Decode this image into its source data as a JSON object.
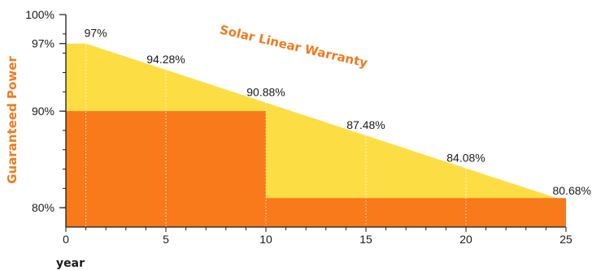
{
  "chart_data": {
    "type": "area",
    "title": "",
    "xlabel": "year",
    "ylabel": "Guaranteed Power",
    "annotation": "Solar Linear Warranty",
    "xlim": [
      0,
      25
    ],
    "ylim": [
      78,
      100
    ],
    "x_ticks": [
      "0",
      "5",
      "10",
      "15",
      "20",
      "25"
    ],
    "x_tick_values": [
      0,
      5,
      10,
      15,
      20,
      25
    ],
    "y_ticks": [
      "100%",
      "97%",
      "90%",
      "80%"
    ],
    "y_tick_values": [
      100,
      97,
      90,
      80
    ],
    "series": [
      {
        "kind": "linear",
        "x": [
          0,
          1,
          5,
          10,
          15,
          20,
          25
        ],
        "y": [
          97,
          97,
          94.28,
          90.88,
          87.48,
          84.08,
          80.68
        ]
      },
      {
        "kind": "step",
        "segments": [
          {
            "x_start": 0,
            "x_end": 10,
            "y": 90
          },
          {
            "x_start": 10,
            "x_end": 25,
            "y": 81
          }
        ]
      }
    ],
    "data_labels": [
      {
        "x": 1,
        "y": 97,
        "text": "97%"
      },
      {
        "x": 5,
        "y": 94.28,
        "text": "94.28%"
      },
      {
        "x": 10,
        "y": 90.88,
        "text": "90.88%"
      },
      {
        "x": 15,
        "y": 87.48,
        "text": "87.48%"
      },
      {
        "x": 20,
        "y": 84.08,
        "text": "84.08%"
      },
      {
        "x": 25,
        "y": 80.68,
        "text": "80.68%"
      }
    ],
    "grid": false,
    "colors": {
      "linear_fill": "#fddd44",
      "step_fill": "#f87a1a",
      "annotation": "#f07b1e",
      "ylabel": "#f07b1e",
      "axis": "#1a1a1a",
      "guide": "#ffffff"
    }
  }
}
